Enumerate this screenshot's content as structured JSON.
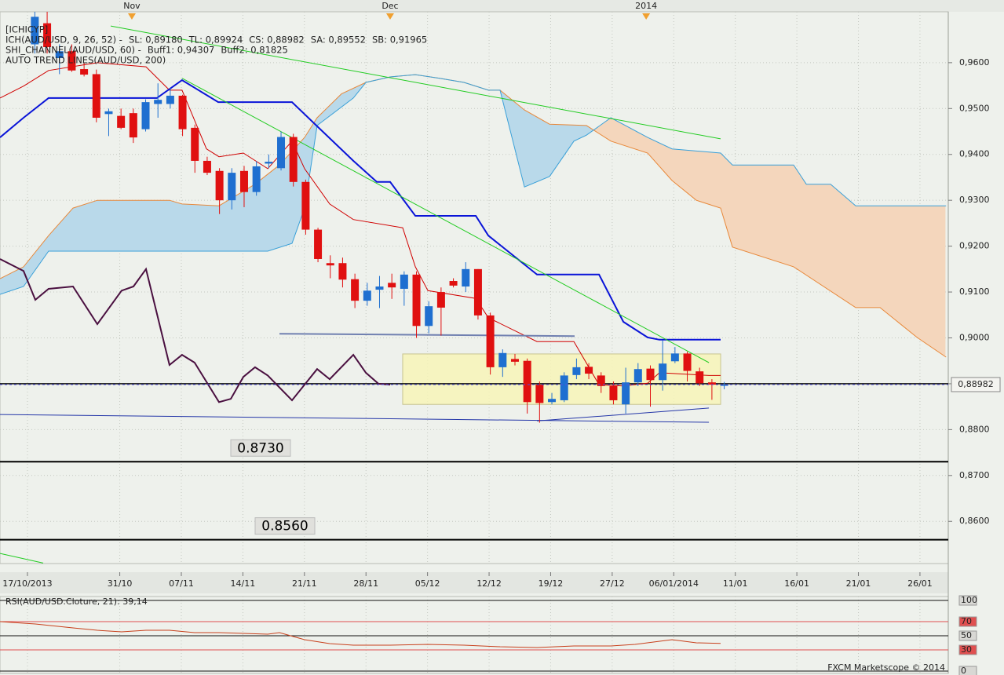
{
  "chart_data": [
    {
      "type": "candlestick",
      "title": "[ICHICYP]",
      "legend": [
        [
          {
            "text": "ICH(AUD/USD, 9, 26, 52) -",
            "color": "#d01010"
          },
          {
            "text": "SL: 0,89180",
            "color": "#d01010"
          },
          {
            "text": "TL: 0,89924",
            "color": "#1010d0"
          },
          {
            "text": "CS: 0,88982",
            "color": "#222222"
          },
          {
            "text": "SA: 0,89552",
            "color": "#e07a20"
          },
          {
            "text": "SB: 0,91965",
            "color": "#2090d0"
          }
        ],
        [
          {
            "text": "SHI_CHANNEL(AUD/USD, 60) -",
            "color": "#20c020"
          },
          {
            "text": "Buff1: 0,94307",
            "color": "#20c020"
          },
          {
            "text": "Buff2: 0,81825",
            "color": "#20c020"
          }
        ],
        [
          {
            "text": "AUTO TREND LINES(AUD/USD, 200)",
            "color": "#111111"
          }
        ]
      ],
      "x": [
        0.6,
        1.6,
        2.6,
        3.6,
        4.6,
        5.6,
        6.6,
        7.6,
        8.6,
        9.6,
        10.6,
        11.6,
        12.6,
        13.6,
        14.6,
        15.6,
        16.6,
        17.6,
        18.6,
        19.6,
        20.6,
        21.6,
        22.6,
        23.6,
        24.6,
        25.6,
        26.6,
        27.6,
        28.6,
        29.6,
        30.6,
        31.6,
        32.6,
        33.6,
        34.6,
        35.6,
        36.6,
        37.6,
        38.6,
        39.6,
        40.6,
        41.6,
        42.6,
        43.6,
        44.6,
        45.6,
        46.6,
        47.6,
        48.6,
        49.6,
        50.6,
        51.6,
        52.6,
        53.6,
        54.6,
        55.6,
        56.6
      ],
      "open": [
        0.964,
        0.9686,
        0.961,
        0.9625,
        0.9586,
        0.9575,
        0.9488,
        0.9484,
        0.949,
        0.9455,
        0.951,
        0.951,
        0.9528,
        0.9458,
        0.9386,
        0.9364,
        0.93,
        0.9364,
        0.9318,
        0.938,
        0.937,
        0.9438,
        0.934,
        0.9236,
        0.9163,
        0.9163,
        0.9128,
        0.9081,
        0.9105,
        0.912,
        0.9107,
        0.9138,
        0.9026,
        0.91,
        0.9124,
        0.9112,
        0.915,
        0.9049,
        0.8936,
        0.8954,
        0.895,
        0.8898,
        0.886,
        0.8864,
        0.8919,
        0.8937,
        0.8918,
        0.8895,
        0.8855,
        0.8903,
        0.8933,
        0.8908,
        0.8949,
        0.8966,
        0.8927,
        0.8903,
        0.8898
      ],
      "high": [
        0.9711,
        0.9711,
        0.964,
        0.964,
        0.96,
        0.9585,
        0.95,
        0.95,
        0.95,
        0.952,
        0.9555,
        0.9545,
        0.953,
        0.9465,
        0.9395,
        0.937,
        0.937,
        0.9375,
        0.9385,
        0.94,
        0.945,
        0.9445,
        0.9345,
        0.924,
        0.918,
        0.9175,
        0.914,
        0.912,
        0.9135,
        0.914,
        0.9145,
        0.9145,
        0.908,
        0.911,
        0.913,
        0.9165,
        0.915,
        0.9055,
        0.8975,
        0.8965,
        0.8955,
        0.8905,
        0.888,
        0.8925,
        0.8955,
        0.8945,
        0.8925,
        0.8905,
        0.8935,
        0.8945,
        0.894,
        0.8995,
        0.898,
        0.897,
        0.8935,
        0.891,
        0.8904
      ],
      "low": [
        0.962,
        0.962,
        0.9575,
        0.958,
        0.957,
        0.947,
        0.944,
        0.9455,
        0.9425,
        0.945,
        0.948,
        0.95,
        0.944,
        0.936,
        0.9355,
        0.927,
        0.928,
        0.9285,
        0.931,
        0.937,
        0.9365,
        0.933,
        0.9225,
        0.9165,
        0.913,
        0.911,
        0.9065,
        0.907,
        0.9065,
        0.9085,
        0.907,
        0.9,
        0.901,
        0.9005,
        0.911,
        0.91,
        0.904,
        0.892,
        0.8915,
        0.894,
        0.8835,
        0.8815,
        0.8855,
        0.886,
        0.891,
        0.891,
        0.888,
        0.8855,
        0.8835,
        0.8895,
        0.885,
        0.8885,
        0.8945,
        0.8905,
        0.8895,
        0.8865,
        0.8888
      ],
      "close": [
        0.97,
        0.9634,
        0.9625,
        0.9583,
        0.9574,
        0.948,
        0.9494,
        0.9458,
        0.9437,
        0.9514,
        0.9519,
        0.9528,
        0.9455,
        0.9386,
        0.936,
        0.93,
        0.936,
        0.9318,
        0.9374,
        0.9384,
        0.9438,
        0.934,
        0.9236,
        0.9172,
        0.9158,
        0.9127,
        0.9081,
        0.9103,
        0.9112,
        0.911,
        0.9138,
        0.9026,
        0.9069,
        0.9066,
        0.9114,
        0.915,
        0.9049,
        0.8936,
        0.8967,
        0.8948,
        0.886,
        0.8858,
        0.8867,
        0.8918,
        0.8936,
        0.8922,
        0.8895,
        0.8864,
        0.8903,
        0.8932,
        0.8908,
        0.8944,
        0.8966,
        0.8928,
        0.8901,
        0.8898,
        0.8898
      ],
      "up_color": "#1f6fd0",
      "down_color": "#e01010",
      "cloud": {
        "up_color": "#b9d9ea",
        "down_color": "#f4d6bc"
      },
      "series": [
        {
          "role": "span_a",
          "color": "#e8883a",
          "style": "thin",
          "x": [
            -2.23,
            -0.32,
            1.72,
            3.7,
            5.68,
            11.54,
            12.56,
            15.56,
            18.49,
            20.47,
            22.51,
            23.53,
            25.51,
            27.49,
            29.46,
            31.51,
            33.48,
            35.46,
            37.44,
            38.39,
            40.37,
            42.41,
            45.41,
            47.39,
            50.38,
            52.36,
            54.34,
            56.31,
            57.27,
            62.24,
            67.28,
            69.26,
            72.26,
            74.62
          ],
          "values": [
            0.9129,
            0.9155,
            0.9223,
            0.9283,
            0.93,
            0.93,
            0.9292,
            0.9288,
            0.9335,
            0.9377,
            0.9437,
            0.948,
            0.9532,
            0.9557,
            0.9569,
            0.9574,
            0.9566,
            0.9557,
            0.954,
            0.954,
            0.9497,
            0.9466,
            0.9463,
            0.9429,
            0.9403,
            0.9343,
            0.93,
            0.9283,
            0.9198,
            0.9155,
            0.9066,
            0.9066,
            0.9001,
            0.8958
          ]
        },
        {
          "role": "span_b",
          "color": "#3aa0d8",
          "style": "thin",
          "x": [
            -2.23,
            -0.32,
            1.72,
            3.7,
            19.52,
            21.49,
            22.51,
            23.53,
            26.47,
            27.49,
            29.46,
            31.51,
            33.48,
            35.46,
            37.44,
            38.39,
            40.37,
            42.41,
            44.39,
            45.41,
            47.39,
            50.38,
            52.36,
            56.31,
            57.27,
            62.24,
            63.27,
            65.24,
            67.28,
            74.62
          ],
          "values": [
            0.9095,
            0.9112,
            0.9189,
            0.9189,
            0.9189,
            0.9206,
            0.9283,
            0.9463,
            0.9523,
            0.9557,
            0.9569,
            0.9574,
            0.9566,
            0.9557,
            0.954,
            0.954,
            0.9329,
            0.9352,
            0.9429,
            0.9442,
            0.948,
            0.9437,
            0.9412,
            0.9403,
            0.9377,
            0.9377,
            0.9335,
            0.9335,
            0.9288,
            0.9288
          ]
        },
        {
          "color": "#4a1040",
          "style": "thick",
          "x": [
            -2.23,
            -0.32,
            0.64,
            1.72,
            3.7,
            5.68,
            7.65,
            8.61,
            9.63,
            11.54,
            12.56,
            13.58,
            15.56,
            16.52,
            17.54,
            18.49,
            19.52,
            21.49,
            23.53,
            24.55,
            26.47,
            27.49,
            28.51,
            29.46
          ],
          "values": [
            0.9172,
            0.9146,
            0.9083,
            0.9107,
            0.9112,
            0.903,
            0.9103,
            0.9112,
            0.915,
            0.8941,
            0.8963,
            0.8946,
            0.886,
            0.8867,
            0.8915,
            0.8936,
            0.8918,
            0.8864,
            0.8932,
            0.891,
            0.8963,
            0.8924,
            0.89,
            0.8898
          ]
        },
        {
          "color": "#d00000",
          "style": "thin",
          "x": [
            -2.23,
            -0.32,
            1.72,
            5.68,
            9.63,
            11.54,
            12.56,
            14.54,
            15.56,
            17.54,
            19.52,
            21.49,
            22.51,
            24.55,
            26.47,
            30.48,
            31.51,
            32.53,
            36.42,
            37.44,
            41.39,
            44.39,
            46.43,
            48.41,
            50.38,
            51.34,
            55.36,
            56.31
          ],
          "values": [
            0.9523,
            0.9549,
            0.9583,
            0.96,
            0.9591,
            0.954,
            0.954,
            0.9412,
            0.9395,
            0.9403,
            0.9369,
            0.9429,
            0.9369,
            0.9292,
            0.9258,
            0.924,
            0.9155,
            0.9103,
            0.9086,
            0.9044,
            0.8992,
            0.8992,
            0.8898,
            0.8895,
            0.8901,
            0.8924,
            0.8918,
            0.8918
          ]
        },
        {
          "color": "#0a14d8",
          "style": "thick",
          "x": [
            -2.23,
            -0.32,
            1.72,
            10.52,
            12.56,
            15.5,
            21.49,
            23.47,
            26.47,
            28.38,
            29.46,
            31.51,
            36.42,
            37.44,
            41.39,
            46.43,
            48.41,
            50.38,
            51.34,
            56.31
          ],
          "values": [
            0.9437,
            0.948,
            0.9523,
            0.9523,
            0.9562,
            0.9514,
            0.9514,
            0.9463,
            0.9386,
            0.934,
            0.934,
            0.9266,
            0.9266,
            0.9223,
            0.9138,
            0.9138,
            0.9035,
            0.9001,
            0.8996,
            0.8996
          ]
        },
        {
          "color": "#22cc22",
          "style": "thin",
          "x": [
            6.76,
            56.31
          ],
          "values": [
            0.968,
            0.9434
          ]
        },
        {
          "color": "#22cc22",
          "style": "thin",
          "x": [
            12.56,
            55.36
          ],
          "values": [
            0.9566,
            0.8946
          ]
        },
        {
          "color": "#22cc22",
          "style": "thin",
          "x": [
            -2.23,
            1.28
          ],
          "values": [
            0.853,
            0.8509
          ]
        },
        {
          "color": "#2436a8",
          "style": "thin",
          "x": [
            -2.23,
            55.36
          ],
          "values": [
            0.8833,
            0.8816
          ]
        },
        {
          "color": "#2436a8",
          "style": "thin",
          "x": [
            41.39,
            55.36
          ],
          "values": [
            0.8819,
            0.8847
          ]
        },
        {
          "color": "#7080b0",
          "style": "thick",
          "x": [
            20.47,
            44.45
          ],
          "values": [
            0.9009,
            0.9004
          ]
        }
      ],
      "zone": {
        "x": [
          30.48,
          56.31
        ],
        "values": [
          0.8965,
          0.8855
        ],
        "color": "#f7f4b8"
      },
      "levels": [
        {
          "value": 0.873,
          "label": "0.8730"
        },
        {
          "value": 0.856,
          "label": "0.8560"
        }
      ],
      "baseline": 0.89,
      "current_price": {
        "value": 0.88982,
        "label": "0,88982"
      },
      "top_markers": [
        {
          "value": 8.48,
          "label": "Nov"
        },
        {
          "value": 29.46,
          "label": "Dec"
        },
        {
          "value": 50.26,
          "label": "2014"
        }
      ],
      "xlim": [
        -2.23,
        74.8
      ],
      "xticks": [
        {
          "value": 0,
          "label": "17/10/2013"
        },
        {
          "value": 7.5,
          "label": "31/10"
        },
        {
          "value": 12.5,
          "label": "07/11"
        },
        {
          "value": 17.5,
          "label": "14/11"
        },
        {
          "value": 22.5,
          "label": "21/11"
        },
        {
          "value": 27.5,
          "label": "28/11"
        },
        {
          "value": 32.5,
          "label": "05/12"
        },
        {
          "value": 37.5,
          "label": "12/12"
        },
        {
          "value": 42.5,
          "label": "19/12"
        },
        {
          "value": 47.5,
          "label": "27/12"
        },
        {
          "value": 52.5,
          "label": "06/01/2014"
        },
        {
          "value": 57.5,
          "label": "11/01"
        },
        {
          "value": 62.5,
          "label": "16/01"
        },
        {
          "value": 67.5,
          "label": "21/01"
        },
        {
          "value": 72.5,
          "label": "26/01"
        }
      ],
      "ylim": [
        0.8508,
        0.9711
      ],
      "yticks": [
        {
          "value": 0.96,
          "label": "0,9600"
        },
        {
          "value": 0.95,
          "label": "0,9500"
        },
        {
          "value": 0.94,
          "label": "0,9400"
        },
        {
          "value": 0.93,
          "label": "0,9300"
        },
        {
          "value": 0.92,
          "label": "0,9200"
        },
        {
          "value": 0.91,
          "label": "0,9100"
        },
        {
          "value": 0.9,
          "label": "0,9000"
        },
        {
          "value": 0.89,
          "label": "0,8900"
        },
        {
          "value": 0.88,
          "label": "0,8800"
        },
        {
          "value": 0.87,
          "label": "0,8700"
        },
        {
          "value": 0.86,
          "label": "0,8600"
        }
      ],
      "grid": true
    },
    {
      "type": "line",
      "title": "RSI(AUD/USD.Cloture, 21): 39,14",
      "color": "#c8401c",
      "x": [
        -2.23,
        0.64,
        3.7,
        5.68,
        7.65,
        9.63,
        11.54,
        13.58,
        15.56,
        17.54,
        19.52,
        20.47,
        22.51,
        24.55,
        26.47,
        29.46,
        32.53,
        35.46,
        38.39,
        41.39,
        44.39,
        47.39,
        49.36,
        52.36,
        54.34,
        56.31
      ],
      "values": [
        70.0,
        66.7,
        61.1,
        57.8,
        55.6,
        57.8,
        57.8,
        54.4,
        54.4,
        53.3,
        52.2,
        54.4,
        44.4,
        38.9,
        36.7,
        36.7,
        37.8,
        36.7,
        34.4,
        33.3,
        35.6,
        35.6,
        37.8,
        44.4,
        40.0,
        39.1
      ],
      "xlim": [
        -2.23,
        74.8
      ],
      "ylim": [
        0,
        100
      ],
      "yticks": [
        100,
        70,
        50,
        30,
        0
      ],
      "band": [
        30,
        70
      ],
      "band_color": "#e05050",
      "footer": "FXCM Marketscope © 2014"
    }
  ]
}
